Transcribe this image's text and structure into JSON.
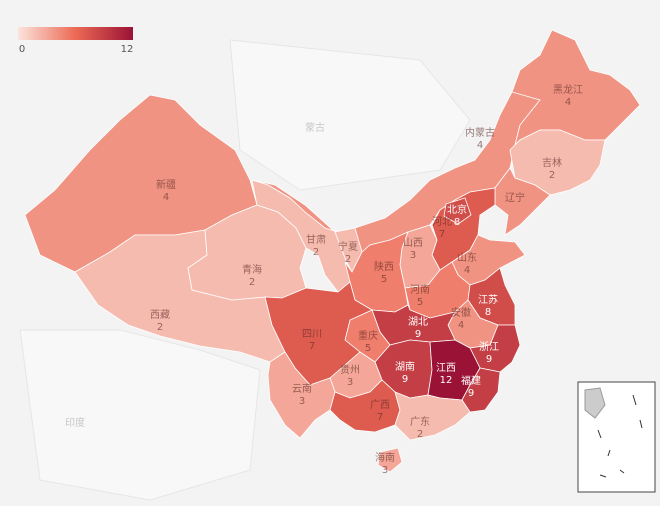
{
  "chart_data": {
    "type": "choropleth",
    "legend": {
      "min": 0,
      "max": 12
    },
    "color_scale": [
      "#fbe4dc",
      "#ec6a55",
      "#9a1235"
    ],
    "background_labels": [
      "蒙古",
      "印度"
    ],
    "regions": [
      {
        "name": "新疆",
        "value": 4
      },
      {
        "name": "西藏",
        "value": 2
      },
      {
        "name": "青海",
        "value": 2
      },
      {
        "name": "内蒙古",
        "value": 4
      },
      {
        "name": "甘肃",
        "value": 2
      },
      {
        "name": "宁夏",
        "value": 2
      },
      {
        "name": "黑龙江",
        "value": 4
      },
      {
        "name": "吉林",
        "value": 2
      },
      {
        "name": "辽宁",
        "value": 4,
        "value_shown": false
      },
      {
        "name": "河北",
        "value": 7
      },
      {
        "name": "北京",
        "value": 8
      },
      {
        "name": "山西",
        "value": 3
      },
      {
        "name": "陕西",
        "value": 5
      },
      {
        "name": "山东",
        "value": 4
      },
      {
        "name": "河南",
        "value": 5
      },
      {
        "name": "江苏",
        "value": 8
      },
      {
        "name": "安徽",
        "value": 4
      },
      {
        "name": "湖北",
        "value": 9
      },
      {
        "name": "浙江",
        "value": 9
      },
      {
        "name": "重庆",
        "value": 5
      },
      {
        "name": "四川",
        "value": 7
      },
      {
        "name": "湖南",
        "value": 9
      },
      {
        "name": "江西",
        "value": 12
      },
      {
        "name": "福建",
        "value": 9
      },
      {
        "name": "贵州",
        "value": 3
      },
      {
        "name": "云南",
        "value": 3
      },
      {
        "name": "广西",
        "value": 7
      },
      {
        "name": "广东",
        "value": 2
      },
      {
        "name": "海南",
        "value": 3
      }
    ]
  }
}
